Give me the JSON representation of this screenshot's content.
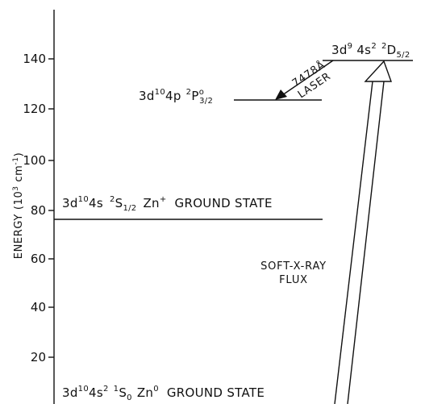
{
  "axis": {
    "label_main": "ENERGY",
    "label_unit_open": "(10",
    "label_unit_exp": "3",
    "label_unit_mid": " cm",
    "label_unit_exp2": "-1",
    "label_unit_close": ")",
    "ticks": [
      "20",
      "40",
      "60",
      "80",
      "100",
      "120",
      "140"
    ]
  },
  "levels": {
    "ground_zn0": {
      "config_a": "3d",
      "config_a_sup": "10",
      "config_b": "4s",
      "config_b_sup": "2",
      "term_sup": "1",
      "term": "S",
      "term_sub": "0",
      "species": "Zn",
      "species_sup": "0",
      "note": "GROUND STATE"
    },
    "ground_zn_plus": {
      "config_a": "3d",
      "config_a_sup": "10",
      "config_b": "4s",
      "term_sup": "2",
      "term": "S",
      "term_sub": "1/2",
      "species": "Zn",
      "species_sup": "+",
      "note": "GROUND STATE"
    },
    "p_level": {
      "config_a": "3d",
      "config_a_sup": "10",
      "config_b": "4p",
      "term_sup": "2",
      "term": "P",
      "term_sup2": "o",
      "term_sub": "3/2"
    },
    "d_level": {
      "config_a": "3d",
      "config_a_sup": "9",
      "config_b": "4s",
      "config_b_sup": "2",
      "term_sup": "2",
      "term": "D",
      "term_sub": "5/2"
    }
  },
  "annotations": {
    "laser_wavelength": "7478Å",
    "laser_label": "LASER",
    "flux_line1": "SOFT-X-RAY",
    "flux_line2": "FLUX"
  }
}
